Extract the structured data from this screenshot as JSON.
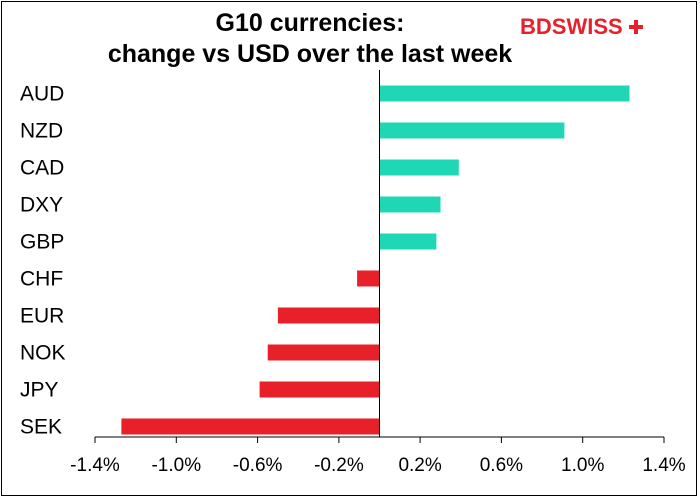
{
  "chart_data": {
    "type": "bar",
    "orientation": "horizontal",
    "title_line1": "G10 currencies:",
    "title_line2": "change vs USD over the last week",
    "xlabel": "",
    "ylabel": "",
    "categories": [
      "AUD",
      "NZD",
      "CAD",
      "DXY",
      "GBP",
      "CHF",
      "EUR",
      "NOK",
      "JPY",
      "SEK"
    ],
    "values": [
      1.23,
      0.91,
      0.39,
      0.3,
      0.28,
      -0.11,
      -0.5,
      -0.55,
      -0.59,
      -1.27
    ],
    "xlim": [
      -1.4,
      1.4
    ],
    "xticks": [
      -1.4,
      -1.0,
      -0.6,
      -0.2,
      0.2,
      0.6,
      1.0,
      1.4
    ],
    "xtick_labels": [
      "-1.4%",
      "-1.0%",
      "-0.6%",
      "-0.2%",
      "0.2%",
      "0.6%",
      "1.0%",
      "1.4%"
    ],
    "positive_color": "#1fd7b5",
    "negative_color": "#e8202a",
    "grid": false
  },
  "logo": {
    "text_bd": "BD",
    "text_swiss": "SWISS",
    "color": "#e8202a"
  }
}
